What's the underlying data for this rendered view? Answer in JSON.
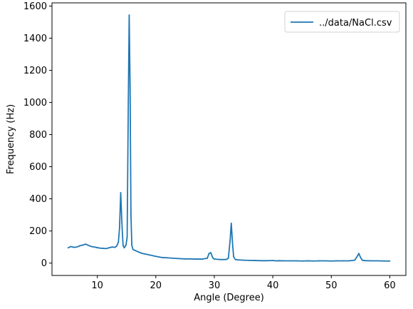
{
  "chart_data": {
    "type": "line",
    "title": "",
    "xlabel": "Angle (Degree)",
    "ylabel": "Frequency (Hz)",
    "xlim": [
      2.25,
      62.75
    ],
    "ylim": [
      -77,
      1620
    ],
    "xticks": [
      10,
      20,
      30,
      40,
      50,
      60
    ],
    "yticks": [
      0,
      200,
      400,
      600,
      800,
      1000,
      1200,
      1400,
      1600
    ],
    "grid": false,
    "legend": {
      "position": "top-right",
      "entries": [
        "../data/NaCl.csv"
      ]
    },
    "series": [
      {
        "name": "../data/NaCl.csv",
        "color": "#1f77b4",
        "x": [
          5.0,
          5.5,
          6.0,
          6.5,
          7.0,
          7.5,
          8.0,
          8.5,
          9.0,
          9.5,
          10.0,
          10.5,
          11.0,
          11.5,
          12.0,
          12.5,
          13.0,
          13.3,
          13.6,
          13.8,
          14.0,
          14.2,
          14.4,
          14.6,
          14.9,
          15.1,
          15.3,
          15.45,
          15.6,
          15.75,
          15.9,
          16.1,
          16.5,
          17.0,
          17.5,
          18.0,
          19.0,
          20.0,
          21.0,
          22.0,
          23.0,
          24.0,
          25.0,
          26.0,
          27.0,
          28.0,
          28.8,
          29.1,
          29.4,
          29.7,
          30.0,
          31.0,
          32.0,
          32.4,
          32.7,
          32.9,
          33.1,
          33.3,
          33.6,
          34.0,
          35.0,
          36.0,
          37.0,
          38.0,
          39.0,
          40.0,
          40.5,
          41.0,
          42.0,
          43.0,
          44.0,
          45.0,
          46.0,
          47.0,
          48.0,
          49.0,
          50.0,
          51.0,
          52.0,
          53.0,
          54.0,
          54.4,
          54.7,
          55.0,
          55.3,
          55.6,
          56.0,
          57.0,
          58.0,
          59.0,
          60.0
        ],
        "y": [
          95,
          103,
          98,
          100,
          108,
          112,
          118,
          110,
          103,
          100,
          96,
          93,
          92,
          90,
          95,
          100,
          98,
          105,
          130,
          220,
          438,
          250,
          110,
          95,
          112,
          160,
          1000,
          1544,
          1100,
          300,
          110,
          85,
          78,
          70,
          62,
          58,
          50,
          42,
          35,
          33,
          30,
          28,
          26,
          26,
          25,
          25,
          30,
          60,
          65,
          35,
          25,
          22,
          22,
          30,
          140,
          248,
          130,
          40,
          22,
          20,
          18,
          17,
          16,
          15,
          15,
          16,
          14,
          15,
          14,
          14,
          14,
          13,
          14,
          13,
          14,
          14,
          13,
          14,
          14,
          14,
          18,
          40,
          60,
          35,
          18,
          16,
          15,
          14,
          14,
          13,
          13
        ]
      }
    ]
  }
}
